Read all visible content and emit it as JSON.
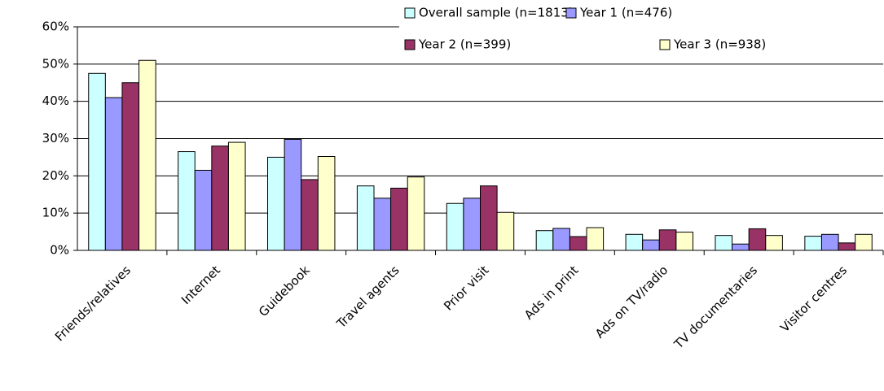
{
  "chart_data": {
    "type": "bar",
    "categories": [
      "Friends/relatives",
      "Internet",
      "Guidebook",
      "Travel agents",
      "Prior visit",
      "Ads in print",
      "Ads on TV/radio",
      "TV documentaries",
      "Visitor centres"
    ],
    "series": [
      {
        "name": "Overall sample (n=1813)",
        "color": "#ccffff",
        "values": [
          47.5,
          26.5,
          25,
          17.3,
          12.6,
          5.3,
          4.3,
          4,
          3.8
        ]
      },
      {
        "name": "Year 1 (n=476)",
        "color": "#9999ff",
        "values": [
          41,
          21.5,
          29.8,
          14,
          14,
          5.9,
          2.8,
          1.7,
          4.3
        ]
      },
      {
        "name": "Year 2 (n=399)",
        "color": "#993366",
        "values": [
          45,
          28,
          19,
          16.7,
          17.3,
          3.7,
          5.5,
          5.8,
          2
        ]
      },
      {
        "name": "Year 3 (n=938)",
        "color": "#ffffcc",
        "values": [
          51,
          29,
          25.2,
          19.7,
          10.2,
          6.1,
          4.9,
          4,
          4.3
        ]
      }
    ],
    "ylim": [
      0,
      60
    ],
    "yticks": [
      {
        "value": 0,
        "label": "0%"
      },
      {
        "value": 10,
        "label": "10%"
      },
      {
        "value": 20,
        "label": "20%"
      },
      {
        "value": 30,
        "label": "30%"
      },
      {
        "value": 40,
        "label": "40%"
      },
      {
        "value": 50,
        "label": "50%"
      },
      {
        "value": 60,
        "label": "60%"
      }
    ],
    "grid": true,
    "legend": "top-right"
  }
}
